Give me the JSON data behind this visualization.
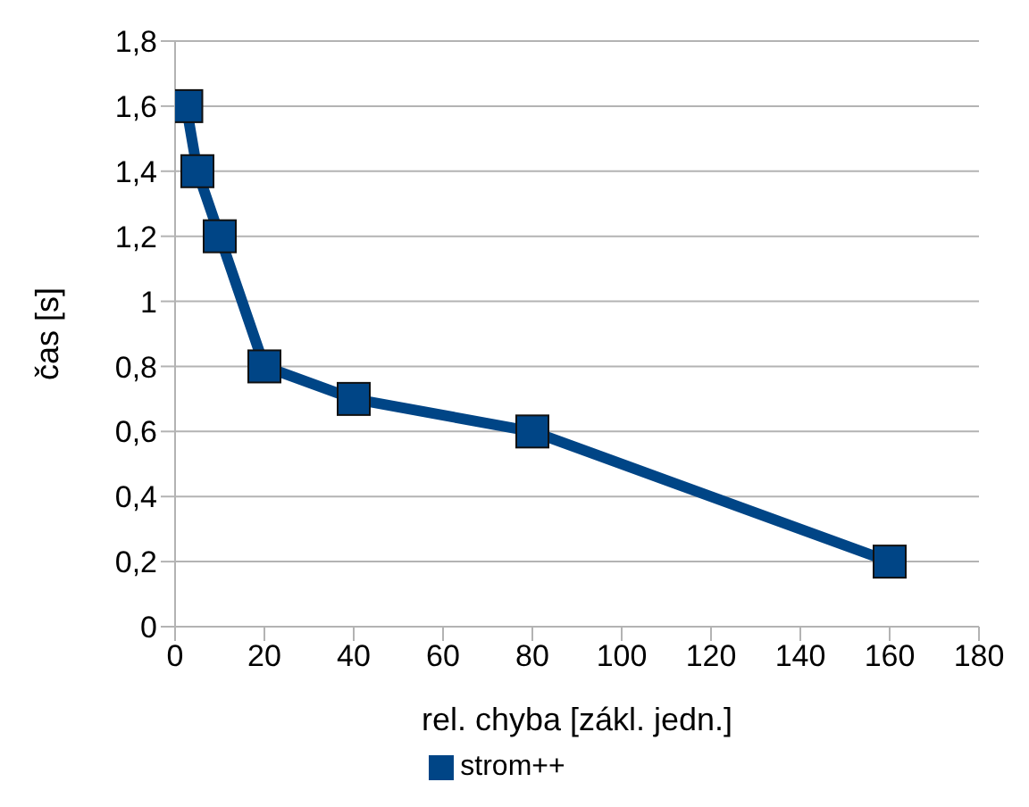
{
  "chart_data": {
    "type": "line",
    "xlabel": "rel. chyba [zákl. jedn.]",
    "ylabel": "čas [s]",
    "x": [
      2.5,
      5,
      10,
      20,
      40,
      80,
      160
    ],
    "series": [
      {
        "name": "strom++",
        "color": "#004586",
        "values": [
          1.6,
          1.4,
          1.2,
          0.8,
          0.7,
          0.6,
          0.2
        ]
      }
    ],
    "xlim": [
      0,
      180
    ],
    "xticks": [
      0,
      20,
      40,
      60,
      80,
      100,
      120,
      140,
      160,
      180
    ],
    "ylim": [
      0,
      1.8
    ],
    "yticks": [
      0,
      {
        "value": 0.2,
        "label": "0,2"
      },
      {
        "value": 0.4,
        "label": "0,4"
      },
      {
        "value": 0.6,
        "label": "0,6"
      },
      {
        "value": 0.8,
        "label": "0,8"
      },
      1,
      {
        "value": 1.2,
        "label": "1,2"
      },
      {
        "value": 1.4,
        "label": "1,4"
      },
      {
        "value": 1.6,
        "label": "1,6"
      },
      {
        "value": 1.8,
        "label": "1,8"
      }
    ],
    "grid": "y",
    "legend": "bottom",
    "marker": "square",
    "line_style": "solid"
  }
}
